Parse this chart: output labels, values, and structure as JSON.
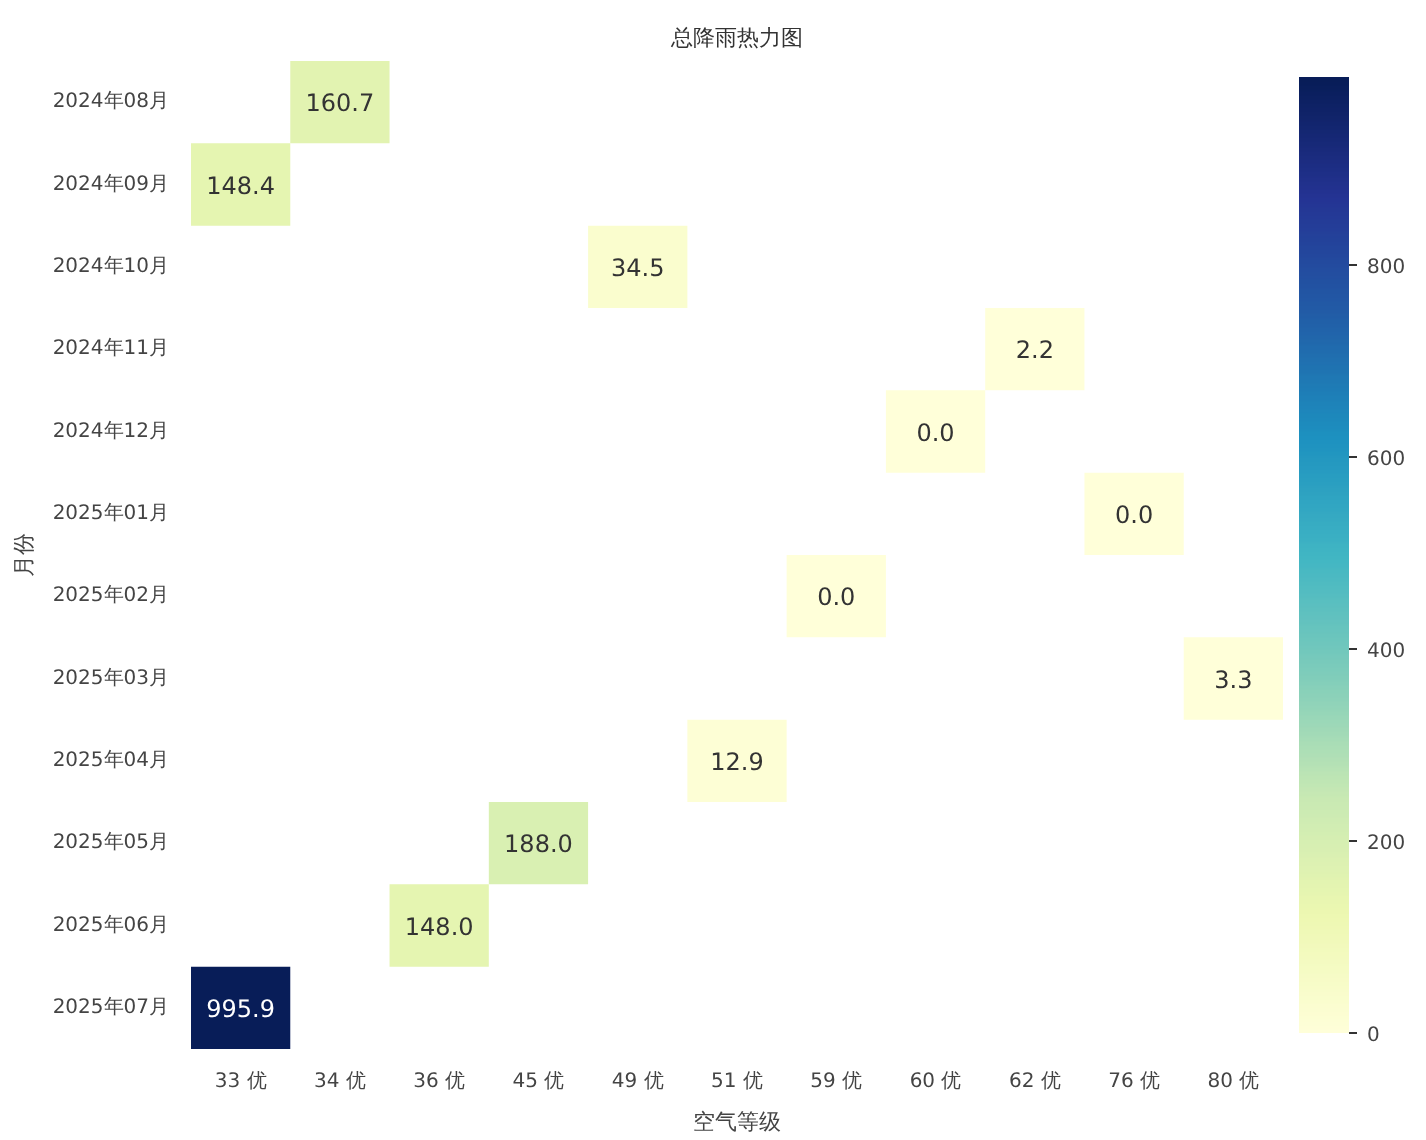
{
  "chart_data": {
    "type": "heatmap",
    "title": "总降雨热力图",
    "xlabel": "空气等级",
    "ylabel": "月份",
    "categories": [
      "33 优",
      "34 优",
      "36 优",
      "45 优",
      "49 优",
      "51 优",
      "59 优",
      "60 优",
      "62 优",
      "76 优",
      "80 优"
    ],
    "y_categories": [
      "2024年08月",
      "2024年09月",
      "2024年10月",
      "2024年11月",
      "2024年12月",
      "2025年01月",
      "2025年02月",
      "2025年03月",
      "2025年04月",
      "2025年05月",
      "2025年06月",
      "2025年07月"
    ],
    "cells": [
      [
        null,
        160.7,
        null,
        null,
        null,
        null,
        null,
        null,
        null,
        null,
        null
      ],
      [
        148.4,
        null,
        null,
        null,
        null,
        null,
        null,
        null,
        null,
        null,
        null
      ],
      [
        null,
        null,
        null,
        null,
        34.5,
        null,
        null,
        null,
        null,
        null,
        null
      ],
      [
        null,
        null,
        null,
        null,
        null,
        null,
        null,
        null,
        2.2,
        null,
        null
      ],
      [
        null,
        null,
        null,
        null,
        null,
        null,
        null,
        0.0,
        null,
        null,
        null
      ],
      [
        null,
        null,
        null,
        null,
        null,
        null,
        null,
        null,
        null,
        0.0,
        null
      ],
      [
        null,
        null,
        null,
        null,
        null,
        null,
        0.0,
        null,
        null,
        null,
        null
      ],
      [
        null,
        null,
        null,
        null,
        null,
        null,
        null,
        null,
        null,
        null,
        3.3
      ],
      [
        null,
        null,
        null,
        null,
        null,
        12.9,
        null,
        null,
        null,
        null,
        null
      ],
      [
        null,
        null,
        null,
        188.0,
        null,
        null,
        null,
        null,
        null,
        null,
        null
      ],
      [
        null,
        null,
        148.0,
        null,
        null,
        null,
        null,
        null,
        null,
        null,
        null
      ],
      [
        995.9,
        null,
        null,
        null,
        null,
        null,
        null,
        null,
        null,
        null,
        null
      ]
    ],
    "cell_labels": [
      [
        null,
        "160.7",
        null,
        null,
        null,
        null,
        null,
        null,
        null,
        null,
        null
      ],
      [
        "148.4",
        null,
        null,
        null,
        null,
        null,
        null,
        null,
        null,
        null,
        null
      ],
      [
        null,
        null,
        null,
        null,
        "34.5",
        null,
        null,
        null,
        null,
        null,
        null
      ],
      [
        null,
        null,
        null,
        null,
        null,
        null,
        null,
        null,
        "2.2",
        null,
        null
      ],
      [
        null,
        null,
        null,
        null,
        null,
        null,
        null,
        "0.0",
        null,
        null,
        null
      ],
      [
        null,
        null,
        null,
        null,
        null,
        null,
        null,
        null,
        null,
        "0.0",
        null
      ],
      [
        null,
        null,
        null,
        null,
        null,
        null,
        "0.0",
        null,
        null,
        null,
        null
      ],
      [
        null,
        null,
        null,
        null,
        null,
        null,
        null,
        null,
        null,
        null,
        "3.3"
      ],
      [
        null,
        null,
        null,
        null,
        null,
        "12.9",
        null,
        null,
        null,
        null,
        null
      ],
      [
        null,
        null,
        null,
        "188.0",
        null,
        null,
        null,
        null,
        null,
        null,
        null
      ],
      [
        null,
        null,
        "148.0",
        null,
        null,
        null,
        null,
        null,
        null,
        null,
        null
      ],
      [
        "995.9",
        null,
        null,
        null,
        null,
        null,
        null,
        null,
        null,
        null,
        null
      ]
    ],
    "clim": [
      0,
      995.9
    ],
    "cticks": [
      0,
      200,
      400,
      600,
      800
    ]
  }
}
